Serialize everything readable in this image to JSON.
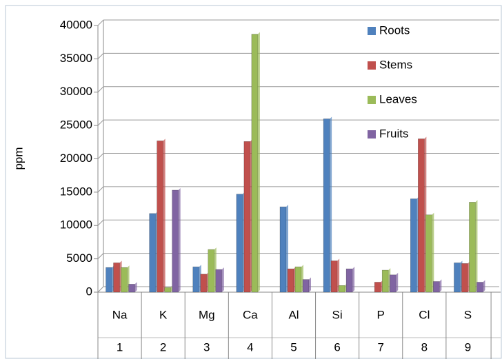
{
  "chart_data": {
    "type": "bar",
    "y_label": "ppm",
    "categories": [
      "Na",
      "K",
      "Mg",
      "Ca",
      "Al",
      "Si",
      "P",
      "Cl",
      "S"
    ],
    "category_numbers": [
      1,
      2,
      3,
      4,
      5,
      6,
      7,
      8,
      9
    ],
    "series": [
      {
        "name": "Roots",
        "color": "#4f81bd",
        "values": [
          3700,
          11800,
          3800,
          14700,
          12800,
          26000,
          0,
          14000,
          4400
        ]
      },
      {
        "name": "Stems",
        "color": "#c0504d",
        "values": [
          4400,
          22700,
          2700,
          22600,
          3500,
          4700,
          1500,
          23000,
          4300
        ]
      },
      {
        "name": "Leaves",
        "color": "#9bbb59",
        "values": [
          3700,
          700,
          6400,
          38700,
          3800,
          1000,
          3300,
          11600,
          13500
        ]
      },
      {
        "name": "Fruits",
        "color": "#8064a2",
        "values": [
          1200,
          15300,
          3400,
          0,
          1900,
          3500,
          2600,
          1600,
          1500
        ]
      }
    ],
    "ylim": [
      0,
      40000
    ],
    "yticks": [
      0,
      5000,
      10000,
      15000,
      20000,
      25000,
      30000,
      35000,
      40000
    ],
    "grid": true,
    "legend": "top-right"
  }
}
